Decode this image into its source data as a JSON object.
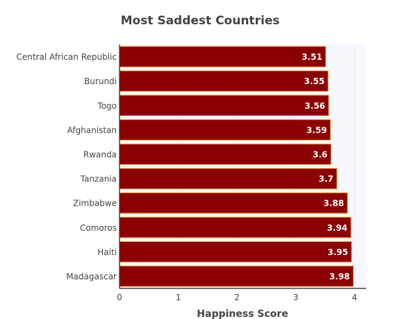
{
  "chart_data": {
    "type": "bar",
    "orientation": "horizontal",
    "title": "Most Saddest Countries",
    "xlabel": "Happiness Score",
    "ylabel": "",
    "categories": [
      "Central African Republic",
      "Burundi",
      "Togo",
      "Afghanistan",
      "Rwanda",
      "Tanzania",
      "Zimbabwe",
      "Comoros",
      "Haiti",
      "Madagascar"
    ],
    "values": [
      3.51,
      3.55,
      3.56,
      3.59,
      3.6,
      3.7,
      3.88,
      3.94,
      3.95,
      3.98
    ],
    "data_labels": [
      "3.51",
      "3.55",
      "3.56",
      "3.59",
      "3.6",
      "3.7",
      "3.88",
      "3.94",
      "3.95",
      "3.98"
    ],
    "xlim": [
      0,
      4.2
    ],
    "xticks": [
      0,
      1,
      2,
      3,
      4
    ],
    "grid": true,
    "legend": "none",
    "colors": {
      "bar_fill": "#8b0000",
      "bar_edge": "#f0a030",
      "plot_bg": "#f7f8fd",
      "grid": "#e6e8f0",
      "axis": "#444444",
      "text": "#444444",
      "label": "#ffffff"
    }
  }
}
